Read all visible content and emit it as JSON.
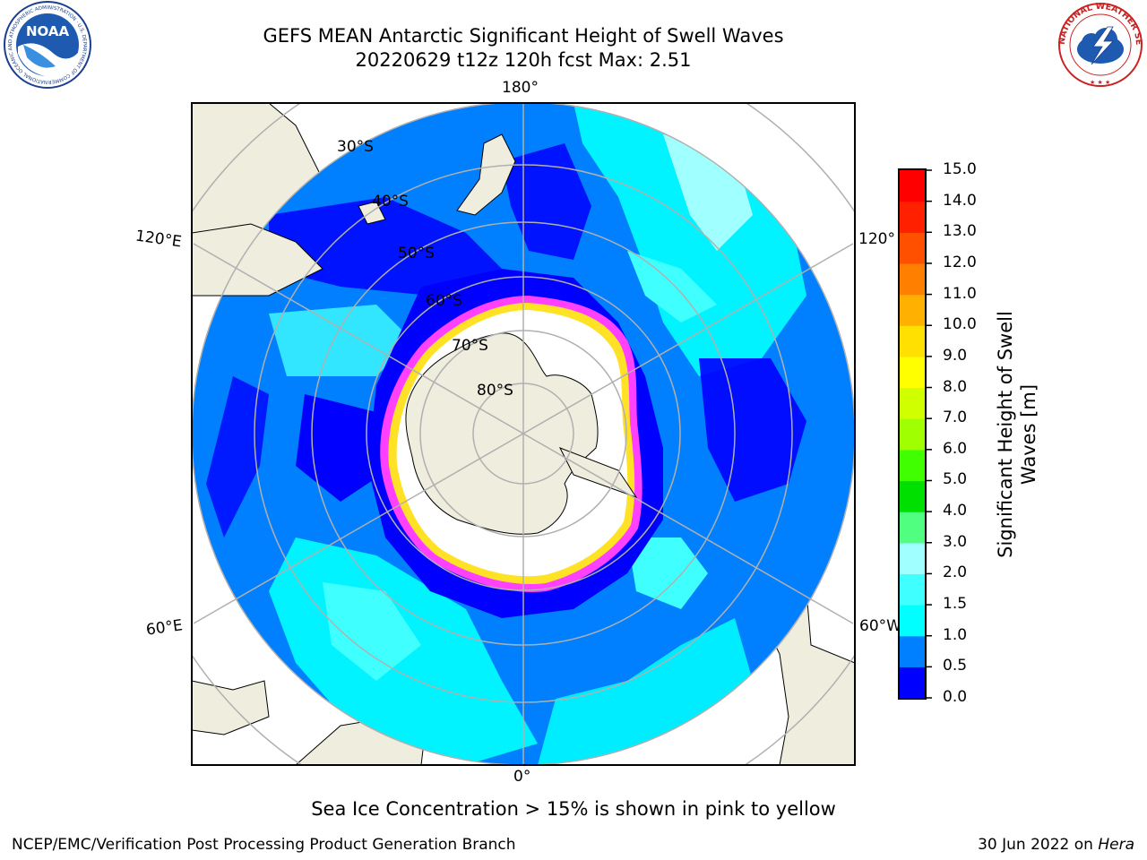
{
  "header": {
    "title": "GEFS MEAN Antarctic Significant Height of Swell Waves",
    "subtitle": "20220629 t12z 120h fcst   Max: 2.51"
  },
  "logos": {
    "noaa": {
      "text": "NOAA",
      "ring_text": "NATIONAL OCEANIC AND ATMOSPHERIC ADMINISTRATION · U.S. DEPARTMENT OF COMMERCE"
    },
    "nws": {
      "ring_text": "NATIONAL WEATHER SERVICE"
    }
  },
  "map": {
    "lon_labels": {
      "top": "180°",
      "bottom": "0°",
      "left_upper": "120°E",
      "left_lower": "60°E",
      "right_upper": "120°",
      "right_lower": "60°W"
    },
    "lat_labels": [
      "30°S",
      "40°S",
      "50°S",
      "60°S",
      "70°S",
      "80°S"
    ]
  },
  "colorbar": {
    "label": "Significant Height of Swell Waves [m]",
    "ticks": [
      "0.0",
      "0.5",
      "1.0",
      "1.5",
      "2.0",
      "3.0",
      "4.0",
      "5.0",
      "6.0",
      "7.0",
      "8.0",
      "9.0",
      "10.0",
      "11.0",
      "12.0",
      "13.0",
      "14.0",
      "15.0"
    ],
    "colors": [
      "#0000ff",
      "#0080ff",
      "#00ffff",
      "#40ffff",
      "#a0ffff",
      "#50ff80",
      "#00e000",
      "#40ff00",
      "#a0ff00",
      "#d0ff00",
      "#ffff00",
      "#ffe000",
      "#ffb000",
      "#ff8000",
      "#ff5000",
      "#ff2000",
      "#ff0000"
    ]
  },
  "note": "Sea Ice Concentration > 15% is shown in pink to yellow",
  "footer": {
    "left": "NCEP/EMC/Verification Post Processing Product Generation Branch",
    "date": "30 Jun 2022 on ",
    "host": "Hera"
  }
}
